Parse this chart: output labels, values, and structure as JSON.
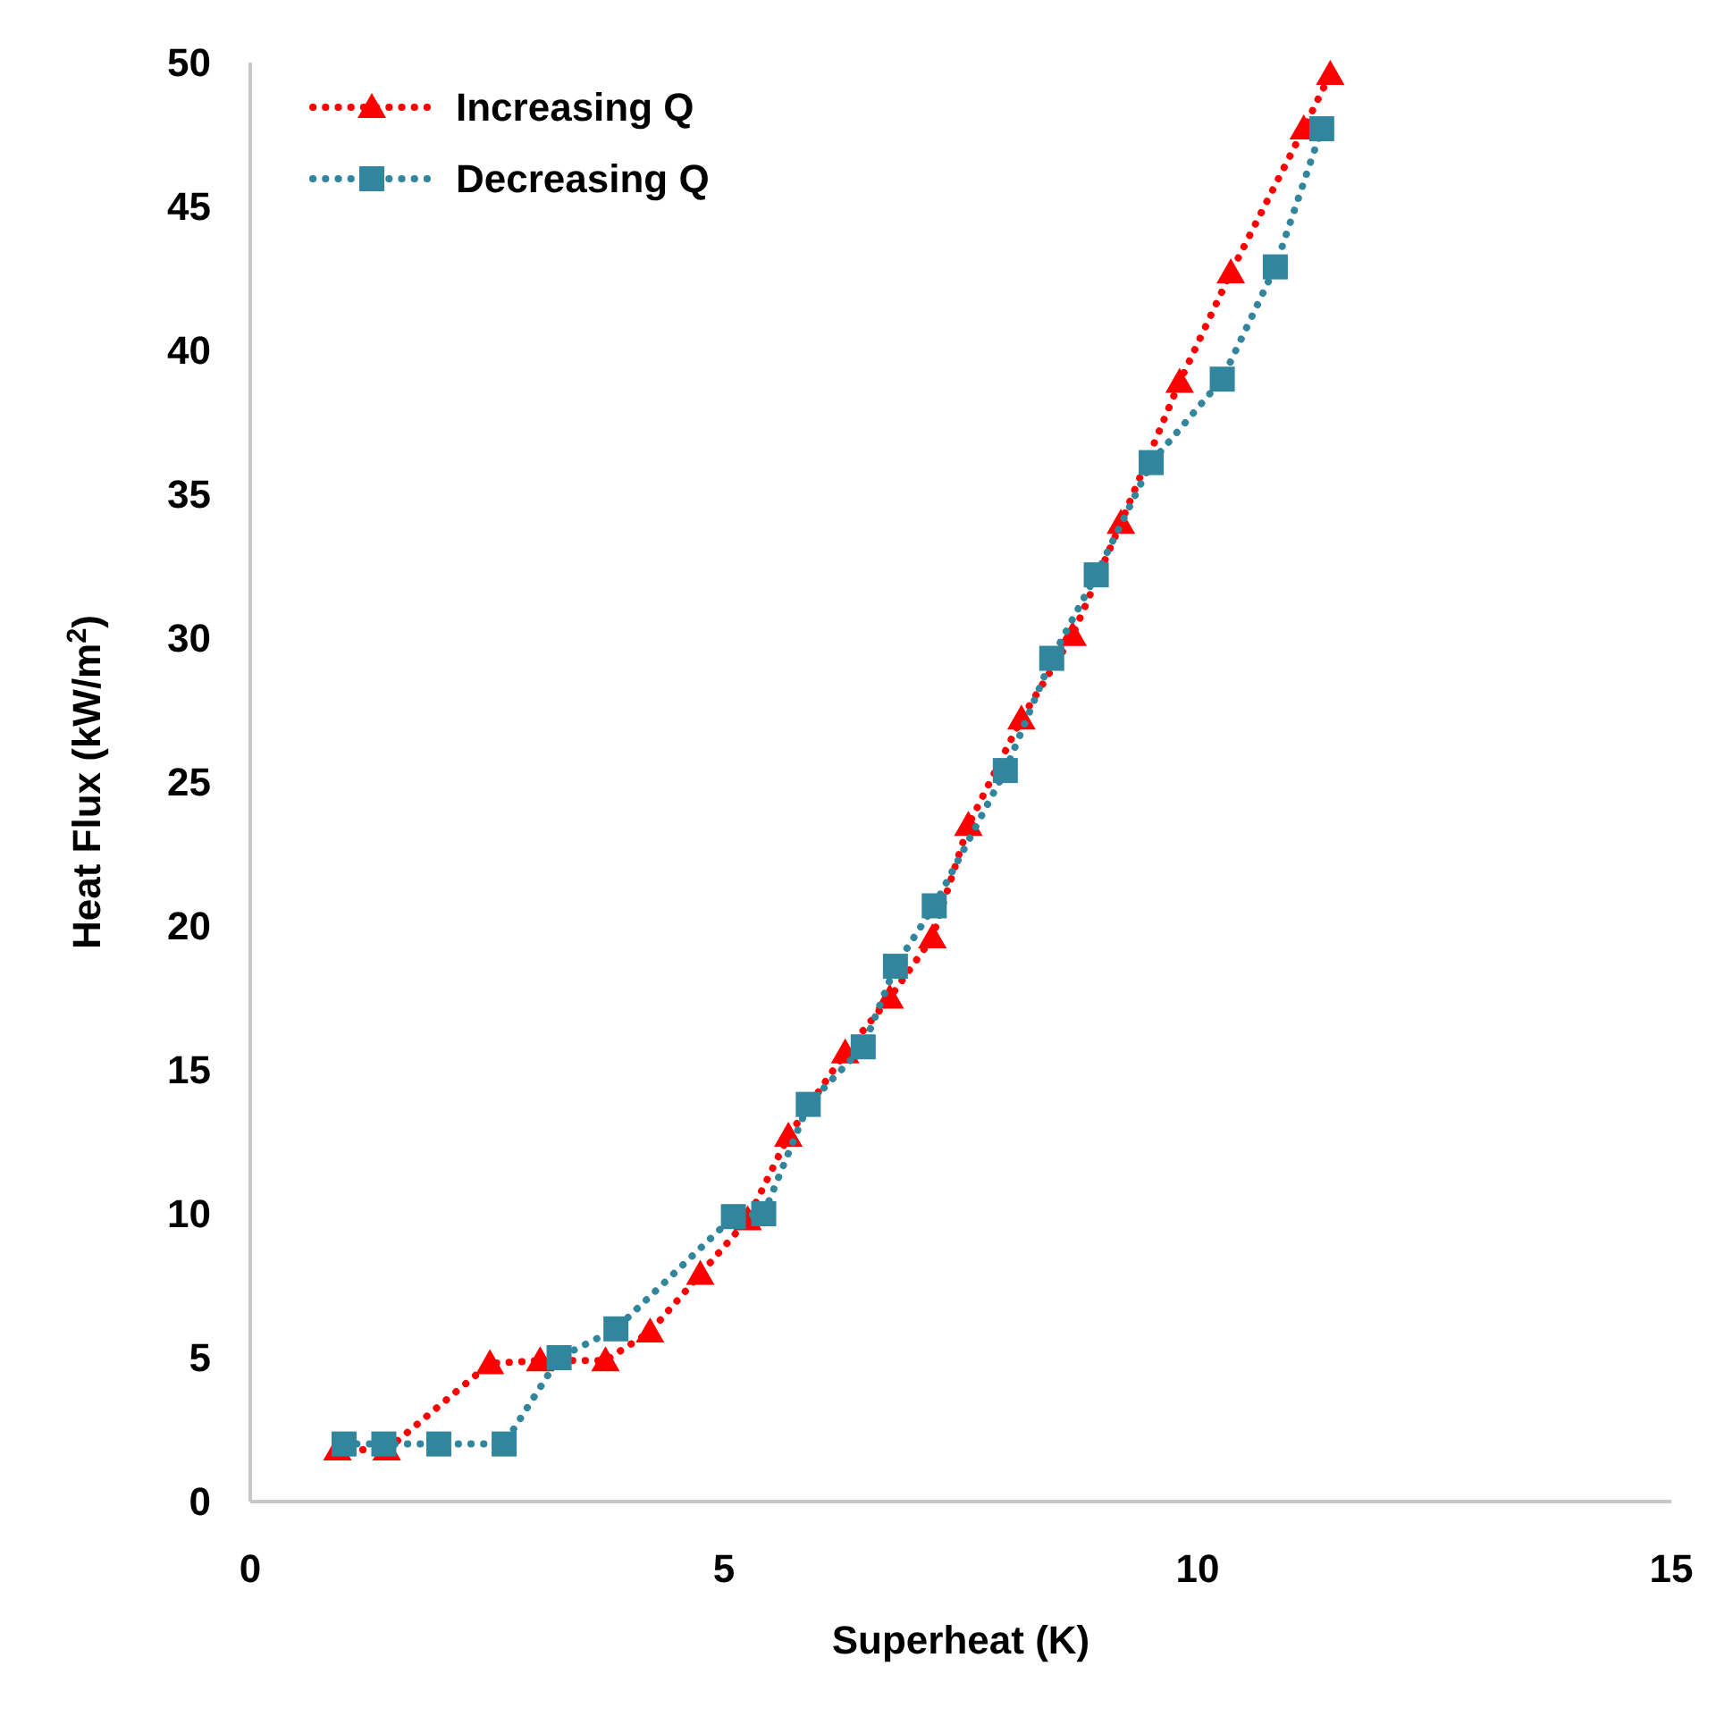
{
  "chart_data": {
    "type": "line",
    "xlabel": "Superheat (K)",
    "ylabel": "Heat Flux (kW/m$^{2}$)",
    "xlim": [
      0,
      15
    ],
    "xticks": [
      0,
      5,
      10,
      15
    ],
    "ylim": [
      0,
      50
    ],
    "yticks": [
      0,
      5,
      10,
      15,
      20,
      25,
      30,
      35,
      40,
      45,
      50
    ],
    "grid": false,
    "legend": "top left",
    "line_style": "dotted",
    "series": [
      {
        "name": "Increasing Q",
        "color": "#ff0000",
        "marker": "triangle",
        "x": [
          0.92,
          1.44,
          2.53,
          3.06,
          3.75,
          4.22,
          4.75,
          5.25,
          5.68,
          6.28,
          6.75,
          7.2,
          7.58,
          8.14,
          8.68,
          9.19,
          9.81,
          10.35,
          11.12,
          11.4
        ],
        "values": [
          1.8,
          1.8,
          4.8,
          4.9,
          4.9,
          5.9,
          7.9,
          9.8,
          12.7,
          15.6,
          17.5,
          19.6,
          23.5,
          27.2,
          30.1,
          34.0,
          38.9,
          42.7,
          47.7,
          49.6
        ]
      },
      {
        "name": "Decreasing Q",
        "color": "#31859c",
        "marker": "square",
        "x": [
          0.99,
          1.41,
          1.99,
          2.68,
          3.26,
          3.86,
          5.1,
          5.42,
          5.89,
          6.47,
          6.81,
          7.22,
          7.97,
          8.46,
          8.93,
          9.51,
          10.26,
          10.82,
          11.31
        ],
        "values": [
          2.0,
          2.0,
          2.0,
          2.0,
          5.0,
          6.0,
          9.9,
          10.0,
          13.8,
          15.8,
          18.6,
          20.7,
          25.4,
          29.3,
          32.2,
          36.1,
          39.0,
          42.9,
          47.7
        ]
      }
    ]
  }
}
